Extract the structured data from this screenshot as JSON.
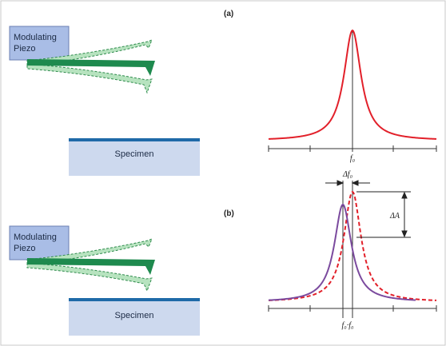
{
  "panel_a": {
    "label": "(a)",
    "piezo_line1": "Modulating",
    "piezo_line2": "Piezo",
    "specimen": "Specimen",
    "axis_label": "f₀"
  },
  "panel_b": {
    "label": "(b)",
    "piezo_line1": "Modulating",
    "piezo_line2": "Piezo",
    "specimen": "Specimen",
    "delta_f": "Δf₀",
    "delta_a": "ΔA",
    "axis_label": "f₀·f₀"
  },
  "colors": {
    "piezo_fill": "#a9bde6",
    "piezo_stroke": "#6b7fb3",
    "cantilever": "#1e8a4e",
    "cantilever_ghost": "#b7e3bf",
    "specimen_fill": "#cdd9ee",
    "specimen_top": "#1f6aa8",
    "curve_a": "#e2202a",
    "curve_b_shifted": "#7b4a9e",
    "curve_b_original": "#e2202a"
  }
}
